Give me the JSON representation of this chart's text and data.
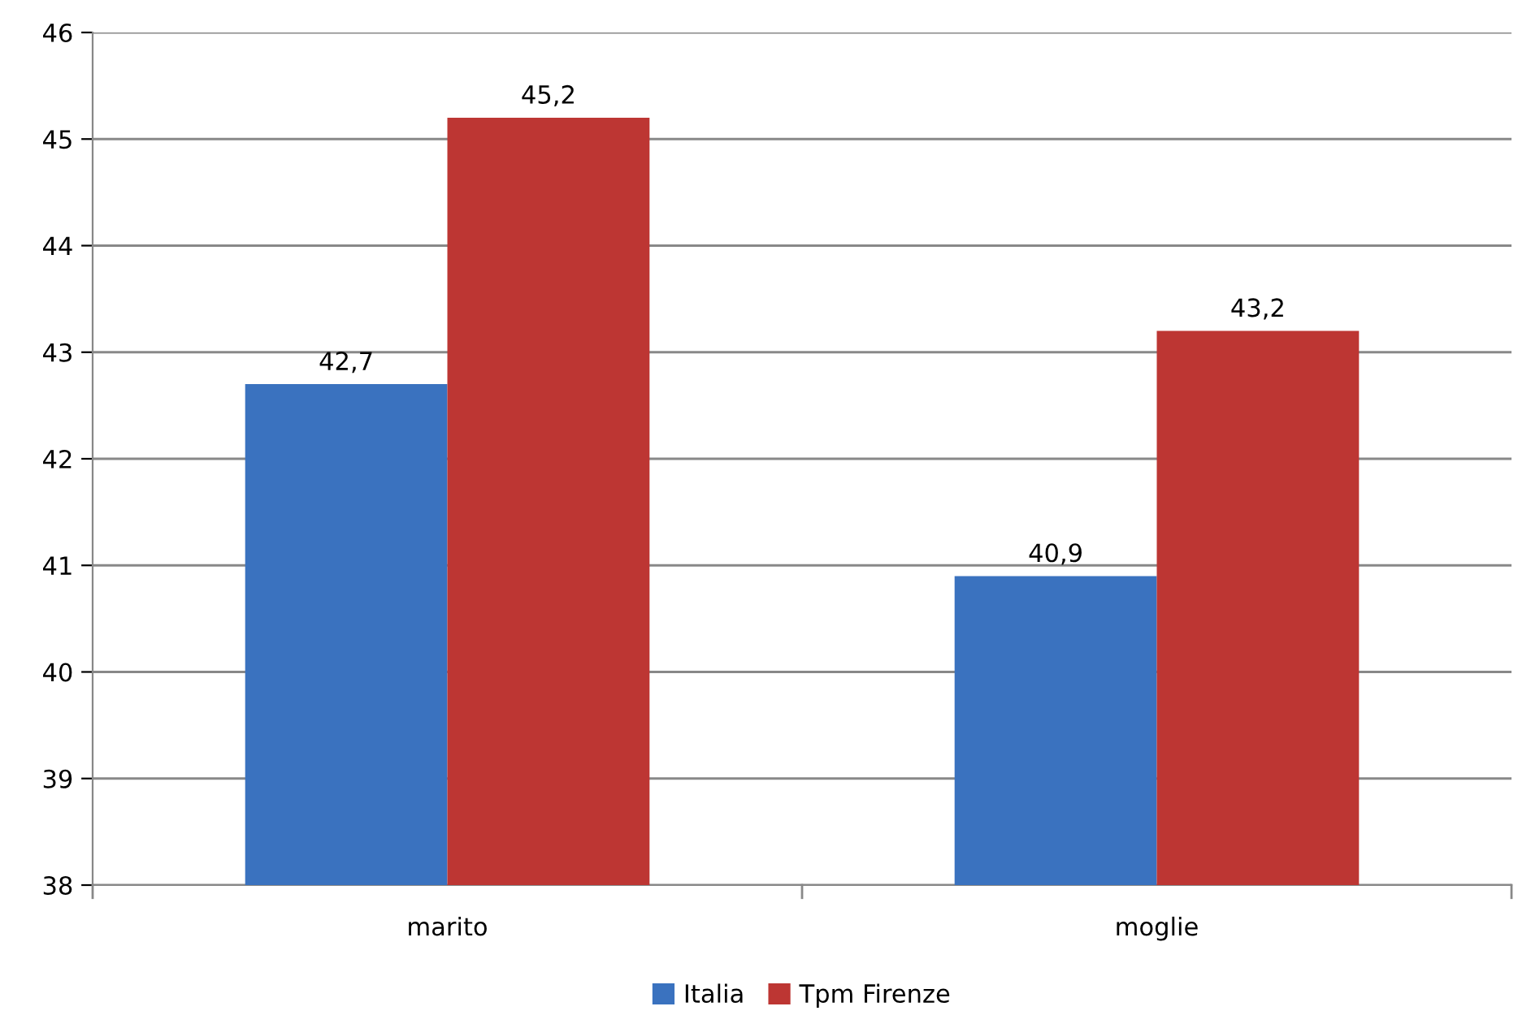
{
  "chart_data": {
    "type": "bar",
    "categories": [
      "marito",
      "moglie"
    ],
    "series": [
      {
        "name": "Italia",
        "color": "#3a72bf",
        "values": [
          42.7,
          40.9
        ],
        "value_labels": [
          "42,7",
          "40,9"
        ]
      },
      {
        "name": "Tpm Firenze",
        "color": "#bd3633",
        "values": [
          45.2,
          43.2
        ],
        "value_labels": [
          "45,2",
          "43,2"
        ]
      }
    ],
    "ylim": [
      38,
      46
    ],
    "yticks": [
      38,
      39,
      40,
      41,
      42,
      43,
      44,
      45,
      46
    ],
    "grid": "y",
    "legend": "bottom"
  }
}
